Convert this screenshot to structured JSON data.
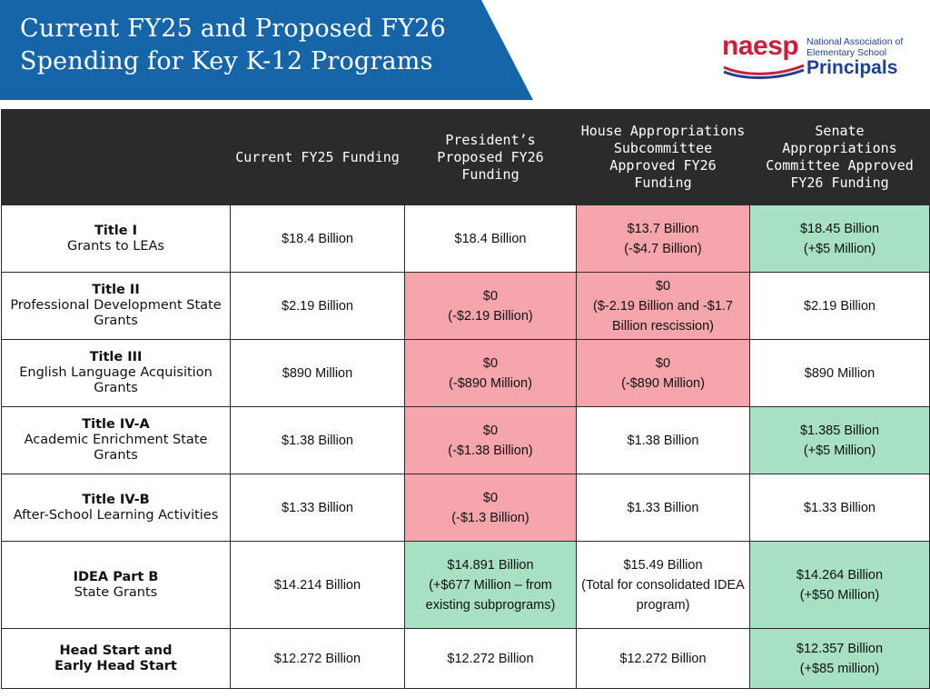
{
  "banner": {
    "title_line1": "Current FY25 and Proposed FY26",
    "title_line2": "Spending for Key K-12 Programs",
    "color": "#1565a8"
  },
  "logo": {
    "word": "naesp",
    "line1": "National Association of",
    "line2": "Elementary School",
    "line3": "Principals",
    "red": "#c8203a",
    "blue": "#1f3f8f"
  },
  "table": {
    "headers": [
      "",
      "Current FY25 Funding",
      "President’s Proposed FY26 Funding",
      "House Appropriations Subcommittee Approved FY26 Funding",
      "Senate Appropriations Committee Approved FY26 Funding"
    ],
    "rows": [
      {
        "program": "Title I",
        "program_sub": "Grants to LEAs",
        "fy25": "$18.4 Billion",
        "president": "$18.4 Billion",
        "president_change": "",
        "house": "$13.7 Billion",
        "house_change": "(-$4.7 Billion)",
        "senate": "$18.45 Billion",
        "senate_change": "(+$5 Million)"
      },
      {
        "program": "Title II",
        "program_sub": "Professional Development State Grants",
        "fy25": "$2.19 Billion",
        "president": "$0",
        "president_change": "(-$2.19 Billion)",
        "house": "$0",
        "house_change": "($-2.19 Billion and -$1.7 Billion rescission)",
        "senate": "$2.19 Billion",
        "senate_change": ""
      },
      {
        "program": "Title III",
        "program_sub": "English Language Acquisition Grants",
        "fy25": "$890 Million",
        "president": "$0",
        "president_change": "(-$890 Million)",
        "house": "$0",
        "house_change": "(-$890 Million)",
        "senate": "$890 Million",
        "senate_change": ""
      },
      {
        "program": "Title IV-A",
        "program_sub": "Academic Enrichment State Grants",
        "fy25": "$1.38 Billion",
        "president": "$0",
        "president_change": "(-$1.38 Billion)",
        "house": "$1.38 Billion",
        "house_change": "",
        "senate": "$1.385 Billion",
        "senate_change": "(+$5 Million)"
      },
      {
        "program": "Title IV-B",
        "program_sub": "After-School Learning Activities",
        "fy25": "$1.33 Billion",
        "president": "$0",
        "president_change": "(-$1.3 Billion)",
        "house": "$1.33 Billion",
        "house_change": "",
        "senate": "$1.33 Billion",
        "senate_change": ""
      },
      {
        "program": "IDEA Part B",
        "program_sub": "State Grants",
        "fy25": "$14.214 Billion",
        "president": "$14.891 Billion",
        "president_change": "(+$677 Million – from existing subprograms)",
        "house": "$15.49 Billion",
        "house_change": "(Total for consolidated IDEA program)",
        "senate": "$14.264 Billion",
        "senate_change": "(+$50 Million)"
      },
      {
        "program": "Head Start and",
        "program_sub": "Early Head Start",
        "fy25": "$12.272 Billion",
        "president": "$12.272 Billion",
        "president_change": "",
        "house": "$12.272 Billion",
        "house_change": "",
        "senate": "$12.357 Billion",
        "senate_change": "(+$85 million)"
      }
    ]
  },
  "colors": {
    "cut": "#f6a5ad",
    "increase": "#a8e0c4",
    "header_bg": "#2b2b2b"
  }
}
